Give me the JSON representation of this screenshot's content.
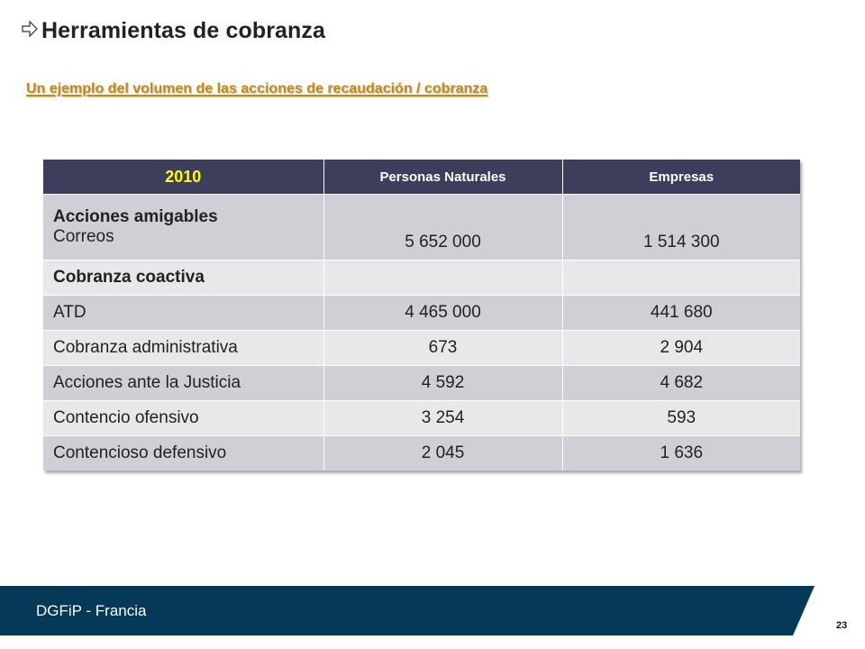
{
  "slide": {
    "title": "Herramientas de cobranza",
    "subtitle": "Un ejemplo del volumen de las acciones de recaudación / cobranza",
    "title_icon": "arrow-bullet-icon"
  },
  "table": {
    "headers": [
      "2010",
      "Personas Naturales",
      "Empresas"
    ],
    "rows": [
      {
        "label_bold": "Acciones amigables",
        "label": "Correos",
        "naturales": "5 652 000",
        "empresas": "1 514 300"
      },
      {
        "label_bold": "Cobranza coactiva",
        "label": "",
        "naturales": "",
        "empresas": ""
      },
      {
        "label_bold": "",
        "label": "ATD",
        "naturales": "4 465 000",
        "empresas": "441 680"
      },
      {
        "label_bold": "",
        "label": "Cobranza administrativa",
        "naturales": "673",
        "empresas": "2 904"
      },
      {
        "label_bold": "",
        "label": "Acciones ante la Justicia",
        "naturales": "4 592",
        "empresas": "4 682"
      },
      {
        "label_bold": "",
        "label": "Contencio ofensivo",
        "naturales": "3 254",
        "empresas": "593"
      },
      {
        "label_bold": "",
        "label": "Contencioso defensivo",
        "naturales": "2 045",
        "empresas": "1 636"
      }
    ]
  },
  "footer": {
    "text": "DGFiP - Francia",
    "page_number": "23"
  },
  "colors": {
    "header_bg": "#3d3d5c",
    "year_text": "#ffff00",
    "subtitle": "#c58a12",
    "footer_bg": "#043a57"
  }
}
